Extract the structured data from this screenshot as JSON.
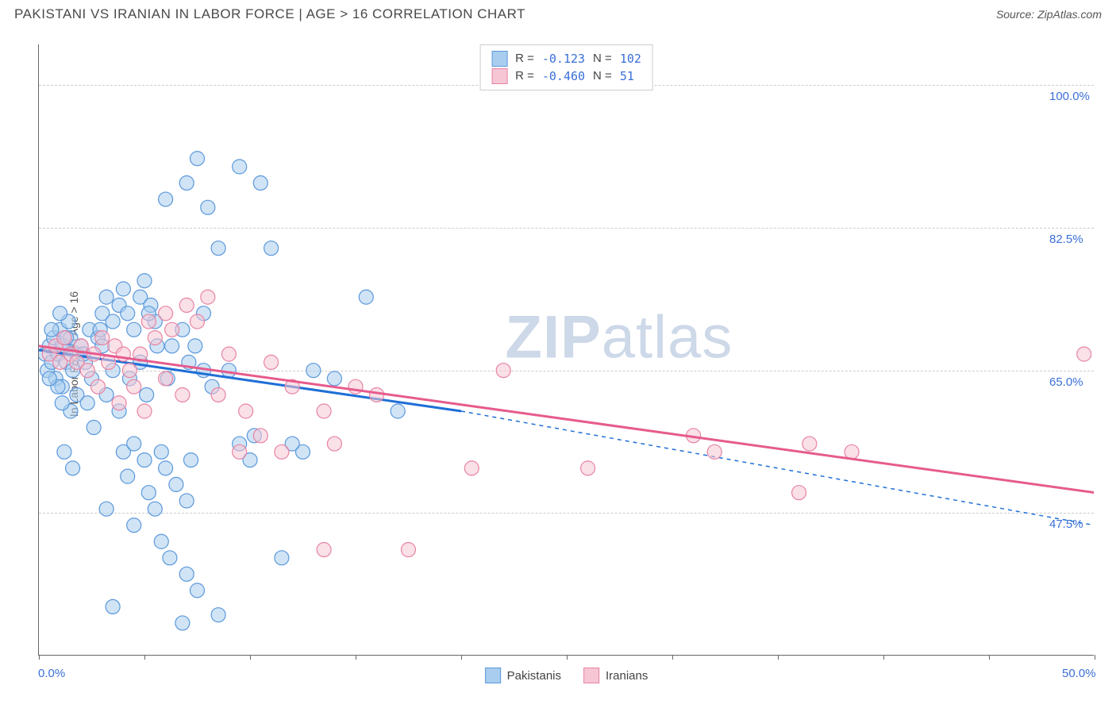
{
  "title": "PAKISTANI VS IRANIAN IN LABOR FORCE | AGE > 16 CORRELATION CHART",
  "source": "Source: ZipAtlas.com",
  "ylabel": "In Labor Force | Age > 16",
  "watermark_a": "ZIP",
  "watermark_b": "atlas",
  "chart": {
    "type": "scatter",
    "xlim": [
      0,
      50
    ],
    "ylim": [
      30,
      105
    ],
    "xticks": [
      0,
      5,
      10,
      15,
      20,
      25,
      30,
      35,
      40,
      45,
      50
    ],
    "xtick_labels": {
      "0": "0.0%",
      "50": "50.0%"
    },
    "yticks": [
      47.5,
      65.0,
      82.5,
      100.0
    ],
    "ytick_labels": [
      "47.5%",
      "65.0%",
      "82.5%",
      "100.0%"
    ],
    "background_color": "#ffffff",
    "grid_color": "#cccccc",
    "marker_radius": 9,
    "marker_opacity": 0.55,
    "series": [
      {
        "name": "Pakistanis",
        "color_fill": "#a9cdef",
        "color_stroke": "#5b98db",
        "r_label": "R =",
        "r": "-0.123",
        "n_label": "N =",
        "n": "102",
        "regression": {
          "x1": 0,
          "y1": 67.5,
          "x2": 20,
          "y2": 60,
          "ext_x2": 50,
          "ext_y2": 46,
          "color": "#1f6fd6",
          "width": 3,
          "dash_ext": "5,5"
        },
        "points": [
          [
            0.3,
            67
          ],
          [
            0.4,
            65
          ],
          [
            0.5,
            68
          ],
          [
            0.6,
            66
          ],
          [
            0.7,
            69
          ],
          [
            0.8,
            64
          ],
          [
            0.9,
            67
          ],
          [
            1.0,
            70
          ],
          [
            1.1,
            63
          ],
          [
            1.2,
            68
          ],
          [
            1.3,
            66
          ],
          [
            1.4,
            71
          ],
          [
            1.0,
            72
          ],
          [
            1.1,
            68
          ],
          [
            1.5,
            69
          ],
          [
            1.6,
            65
          ],
          [
            1.8,
            67
          ],
          [
            2.0,
            68
          ],
          [
            2.2,
            66
          ],
          [
            2.4,
            70
          ],
          [
            2.5,
            64
          ],
          [
            2.8,
            69
          ],
          [
            3.0,
            72
          ],
          [
            3.2,
            74
          ],
          [
            3.5,
            71
          ],
          [
            3.0,
            68
          ],
          [
            3.8,
            73
          ],
          [
            4.0,
            75
          ],
          [
            4.2,
            72
          ],
          [
            4.5,
            70
          ],
          [
            4.8,
            74
          ],
          [
            5.0,
            76
          ],
          [
            5.3,
            73
          ],
          [
            5.5,
            71
          ],
          [
            4.0,
            55
          ],
          [
            4.2,
            52
          ],
          [
            4.5,
            56
          ],
          [
            5.0,
            54
          ],
          [
            5.2,
            50
          ],
          [
            5.5,
            48
          ],
          [
            5.8,
            55
          ],
          [
            6.0,
            53
          ],
          [
            6.5,
            51
          ],
          [
            7.0,
            49
          ],
          [
            7.2,
            54
          ],
          [
            4.5,
            46
          ],
          [
            5.8,
            44
          ],
          [
            6.2,
            42
          ],
          [
            7.0,
            40
          ],
          [
            7.5,
            38
          ],
          [
            3.2,
            48
          ],
          [
            6.0,
            86
          ],
          [
            7.0,
            88
          ],
          [
            7.5,
            91
          ],
          [
            8.0,
            85
          ],
          [
            8.5,
            80
          ],
          [
            9.5,
            90
          ],
          [
            10.5,
            88
          ],
          [
            11.0,
            80
          ],
          [
            7.8,
            72
          ],
          [
            8.2,
            63
          ],
          [
            9.0,
            65
          ],
          [
            9.5,
            56
          ],
          [
            10.0,
            54
          ],
          [
            10.2,
            57
          ],
          [
            11.5,
            42
          ],
          [
            12.5,
            55
          ],
          [
            13.0,
            65
          ],
          [
            14.0,
            64
          ],
          [
            15.5,
            74
          ],
          [
            12.0,
            56
          ],
          [
            8.5,
            35
          ],
          [
            3.5,
            36
          ],
          [
            6.8,
            34
          ],
          [
            1.5,
            60
          ],
          [
            1.8,
            62
          ],
          [
            2.3,
            61
          ],
          [
            2.6,
            58
          ],
          [
            3.2,
            62
          ],
          [
            3.8,
            60
          ],
          [
            4.3,
            64
          ],
          [
            5.1,
            62
          ],
          [
            1.2,
            55
          ],
          [
            1.6,
            53
          ],
          [
            4.8,
            66
          ],
          [
            6.3,
            68
          ],
          [
            6.8,
            70
          ],
          [
            7.1,
            66
          ],
          [
            7.4,
            68
          ],
          [
            7.8,
            65
          ],
          [
            3.5,
            65
          ],
          [
            0.6,
            70
          ],
          [
            0.9,
            63
          ],
          [
            1.3,
            69
          ],
          [
            1.1,
            61
          ],
          [
            2.1,
            67
          ],
          [
            2.9,
            70
          ],
          [
            5.2,
            72
          ],
          [
            5.6,
            68
          ],
          [
            6.1,
            64
          ],
          [
            0.5,
            64
          ],
          [
            17,
            60
          ]
        ]
      },
      {
        "name": "Iranians",
        "color_fill": "#f6c6d4",
        "color_stroke": "#e884a3",
        "r_label": "R =",
        "r": "-0.460",
        "n_label": "N =",
        "n": " 51",
        "regression": {
          "x1": 0,
          "y1": 68,
          "x2": 50,
          "y2": 50,
          "color": "#e65b8d",
          "width": 3
        },
        "points": [
          [
            0.5,
            67
          ],
          [
            0.8,
            68
          ],
          [
            1.0,
            66
          ],
          [
            1.2,
            69
          ],
          [
            1.5,
            67
          ],
          [
            1.8,
            66
          ],
          [
            2.0,
            68
          ],
          [
            2.3,
            65
          ],
          [
            2.6,
            67
          ],
          [
            3.0,
            69
          ],
          [
            3.3,
            66
          ],
          [
            3.6,
            68
          ],
          [
            4.0,
            67
          ],
          [
            4.3,
            65
          ],
          [
            4.8,
            67
          ],
          [
            5.2,
            71
          ],
          [
            5.5,
            69
          ],
          [
            6.0,
            72
          ],
          [
            6.3,
            70
          ],
          [
            7.0,
            73
          ],
          [
            7.5,
            71
          ],
          [
            8.0,
            74
          ],
          [
            9.0,
            67
          ],
          [
            11.0,
            66
          ],
          [
            12.0,
            63
          ],
          [
            13.5,
            60
          ],
          [
            14.0,
            56
          ],
          [
            15.0,
            63
          ],
          [
            16.0,
            62
          ],
          [
            20.5,
            53
          ],
          [
            22.0,
            65
          ],
          [
            26.0,
            53
          ],
          [
            31.0,
            57
          ],
          [
            32.0,
            55
          ],
          [
            36.0,
            50
          ],
          [
            36.5,
            56
          ],
          [
            38.5,
            55
          ],
          [
            49.5,
            67
          ],
          [
            9.5,
            55
          ],
          [
            10.5,
            57
          ],
          [
            13.5,
            43
          ],
          [
            17.5,
            43
          ],
          [
            5.0,
            60
          ],
          [
            6.0,
            64
          ],
          [
            8.5,
            62
          ],
          [
            9.8,
            60
          ],
          [
            4.5,
            63
          ],
          [
            2.8,
            63
          ],
          [
            3.8,
            61
          ],
          [
            6.8,
            62
          ],
          [
            11.5,
            55
          ]
        ]
      }
    ]
  },
  "legend_bottom": [
    "Pakistanis",
    "Iranians"
  ]
}
